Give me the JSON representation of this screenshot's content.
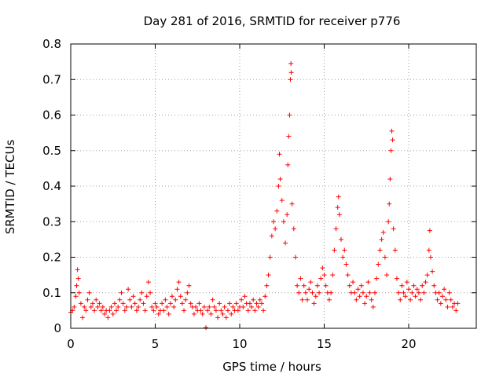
{
  "colors": {
    "points": "#ff0000",
    "grid": "#a0a0a0",
    "axis": "#000000",
    "background": "#ffffff"
  },
  "chart_data": {
    "type": "scatter",
    "title": "Day 281 of 2016, SRMTID for receiver p776",
    "xlabel": "GPS time / hours",
    "ylabel": "SRMTID / TECUs",
    "xlim": [
      0,
      24
    ],
    "ylim": [
      0,
      0.8
    ],
    "grid": true,
    "marker": "plus",
    "x_ticks": [
      {
        "value": 0,
        "label": "0"
      },
      {
        "value": 5,
        "label": "5"
      },
      {
        "value": 10,
        "label": "10"
      },
      {
        "value": 15,
        "label": "15"
      },
      {
        "value": 20,
        "label": "20"
      }
    ],
    "y_ticks": [
      {
        "value": 0,
        "label": "0"
      },
      {
        "value": 0.1,
        "label": "0.1"
      },
      {
        "value": 0.2,
        "label": "0.2"
      },
      {
        "value": 0.3,
        "label": "0.3"
      },
      {
        "value": 0.4,
        "label": "0.4"
      },
      {
        "value": 0.5,
        "label": "0.5"
      },
      {
        "value": 0.6,
        "label": "0.6"
      },
      {
        "value": 0.7,
        "label": "0.7"
      },
      {
        "value": 0.8,
        "label": "0.8"
      }
    ],
    "series": [
      {
        "name": "SRMTID",
        "points": [
          [
            0.0,
            0.045
          ],
          [
            0.1,
            0.05
          ],
          [
            0.2,
            0.06
          ],
          [
            0.3,
            0.09
          ],
          [
            0.35,
            0.12
          ],
          [
            0.4,
            0.165
          ],
          [
            0.45,
            0.14
          ],
          [
            0.5,
            0.1
          ],
          [
            0.6,
            0.07
          ],
          [
            0.7,
            0.03
          ],
          [
            0.8,
            0.06
          ],
          [
            0.9,
            0.05
          ],
          [
            1.0,
            0.08
          ],
          [
            1.1,
            0.1
          ],
          [
            1.2,
            0.06
          ],
          [
            1.3,
            0.07
          ],
          [
            1.4,
            0.05
          ],
          [
            1.5,
            0.08
          ],
          [
            1.6,
            0.06
          ],
          [
            1.7,
            0.07
          ],
          [
            1.8,
            0.05
          ],
          [
            1.9,
            0.06
          ],
          [
            2.0,
            0.04
          ],
          [
            2.1,
            0.05
          ],
          [
            2.2,
            0.03
          ],
          [
            2.3,
            0.05
          ],
          [
            2.4,
            0.06
          ],
          [
            2.5,
            0.04
          ],
          [
            2.6,
            0.07
          ],
          [
            2.7,
            0.05
          ],
          [
            2.8,
            0.06
          ],
          [
            2.9,
            0.08
          ],
          [
            3.0,
            0.1
          ],
          [
            3.1,
            0.07
          ],
          [
            3.2,
            0.05
          ],
          [
            3.3,
            0.06
          ],
          [
            3.4,
            0.11
          ],
          [
            3.5,
            0.08
          ],
          [
            3.6,
            0.06
          ],
          [
            3.7,
            0.09
          ],
          [
            3.8,
            0.07
          ],
          [
            3.9,
            0.05
          ],
          [
            4.0,
            0.06
          ],
          [
            4.1,
            0.08
          ],
          [
            4.2,
            0.1
          ],
          [
            4.3,
            0.07
          ],
          [
            4.4,
            0.05
          ],
          [
            4.5,
            0.09
          ],
          [
            4.6,
            0.13
          ],
          [
            4.7,
            0.1
          ],
          [
            4.8,
            0.06
          ],
          [
            4.9,
            0.05
          ],
          [
            5.0,
            0.07
          ],
          [
            5.1,
            0.06
          ],
          [
            5.2,
            0.04
          ],
          [
            5.3,
            0.05
          ],
          [
            5.4,
            0.07
          ],
          [
            5.5,
            0.05
          ],
          [
            5.6,
            0.08
          ],
          [
            5.7,
            0.06
          ],
          [
            5.8,
            0.04
          ],
          [
            5.9,
            0.07
          ],
          [
            6.0,
            0.09
          ],
          [
            6.1,
            0.06
          ],
          [
            6.2,
            0.08
          ],
          [
            6.3,
            0.11
          ],
          [
            6.4,
            0.13
          ],
          [
            6.5,
            0.09
          ],
          [
            6.6,
            0.07
          ],
          [
            6.7,
            0.05
          ],
          [
            6.8,
            0.08
          ],
          [
            6.9,
            0.1
          ],
          [
            7.0,
            0.12
          ],
          [
            7.1,
            0.07
          ],
          [
            7.2,
            0.06
          ],
          [
            7.3,
            0.04
          ],
          [
            7.4,
            0.06
          ],
          [
            7.5,
            0.05
          ],
          [
            7.6,
            0.07
          ],
          [
            7.7,
            0.05
          ],
          [
            7.8,
            0.04
          ],
          [
            7.9,
            0.06
          ],
          [
            8.0,
            0.002
          ],
          [
            8.1,
            0.05
          ],
          [
            8.2,
            0.06
          ],
          [
            8.3,
            0.04
          ],
          [
            8.4,
            0.08
          ],
          [
            8.5,
            0.06
          ],
          [
            8.6,
            0.05
          ],
          [
            8.7,
            0.03
          ],
          [
            8.8,
            0.07
          ],
          [
            8.9,
            0.05
          ],
          [
            9.0,
            0.04
          ],
          [
            9.1,
            0.06
          ],
          [
            9.2,
            0.03
          ],
          [
            9.3,
            0.05
          ],
          [
            9.4,
            0.07
          ],
          [
            9.5,
            0.04
          ],
          [
            9.6,
            0.06
          ],
          [
            9.7,
            0.05
          ],
          [
            9.8,
            0.07
          ],
          [
            9.9,
            0.05
          ],
          [
            10.0,
            0.06
          ],
          [
            10.1,
            0.08
          ],
          [
            10.2,
            0.06
          ],
          [
            10.3,
            0.09
          ],
          [
            10.4,
            0.07
          ],
          [
            10.5,
            0.05
          ],
          [
            10.6,
            0.07
          ],
          [
            10.7,
            0.06
          ],
          [
            10.8,
            0.08
          ],
          [
            10.9,
            0.05
          ],
          [
            11.0,
            0.07
          ],
          [
            11.1,
            0.06
          ],
          [
            11.2,
            0.08
          ],
          [
            11.3,
            0.07
          ],
          [
            11.4,
            0.05
          ],
          [
            11.5,
            0.09
          ],
          [
            11.6,
            0.12
          ],
          [
            11.7,
            0.15
          ],
          [
            11.8,
            0.2
          ],
          [
            11.9,
            0.26
          ],
          [
            12.0,
            0.3
          ],
          [
            12.1,
            0.28
          ],
          [
            12.2,
            0.33
          ],
          [
            12.3,
            0.4
          ],
          [
            12.35,
            0.49
          ],
          [
            12.4,
            0.42
          ],
          [
            12.5,
            0.36
          ],
          [
            12.6,
            0.3
          ],
          [
            12.7,
            0.24
          ],
          [
            12.8,
            0.32
          ],
          [
            12.85,
            0.46
          ],
          [
            12.9,
            0.54
          ],
          [
            12.95,
            0.6
          ],
          [
            13.0,
            0.7
          ],
          [
            13.03,
            0.745
          ],
          [
            13.05,
            0.72
          ],
          [
            13.1,
            0.35
          ],
          [
            13.2,
            0.28
          ],
          [
            13.3,
            0.2
          ],
          [
            13.4,
            0.12
          ],
          [
            13.5,
            0.1
          ],
          [
            13.6,
            0.14
          ],
          [
            13.7,
            0.08
          ],
          [
            13.8,
            0.12
          ],
          [
            13.9,
            0.1
          ],
          [
            14.0,
            0.08
          ],
          [
            14.1,
            0.11
          ],
          [
            14.2,
            0.13
          ],
          [
            14.3,
            0.1
          ],
          [
            14.4,
            0.07
          ],
          [
            14.5,
            0.09
          ],
          [
            14.6,
            0.12
          ],
          [
            14.7,
            0.1
          ],
          [
            14.8,
            0.14
          ],
          [
            14.9,
            0.17
          ],
          [
            15.0,
            0.15
          ],
          [
            15.1,
            0.12
          ],
          [
            15.2,
            0.1
          ],
          [
            15.3,
            0.08
          ],
          [
            15.4,
            0.1
          ],
          [
            15.5,
            0.15
          ],
          [
            15.6,
            0.22
          ],
          [
            15.7,
            0.28
          ],
          [
            15.8,
            0.34
          ],
          [
            15.85,
            0.37
          ],
          [
            15.9,
            0.32
          ],
          [
            16.0,
            0.25
          ],
          [
            16.1,
            0.2
          ],
          [
            16.2,
            0.22
          ],
          [
            16.3,
            0.18
          ],
          [
            16.4,
            0.15
          ],
          [
            16.5,
            0.12
          ],
          [
            16.6,
            0.1
          ],
          [
            16.7,
            0.13
          ],
          [
            16.8,
            0.1
          ],
          [
            16.9,
            0.08
          ],
          [
            17.0,
            0.11
          ],
          [
            17.1,
            0.09
          ],
          [
            17.2,
            0.12
          ],
          [
            17.3,
            0.1
          ],
          [
            17.4,
            0.07
          ],
          [
            17.5,
            0.09
          ],
          [
            17.6,
            0.13
          ],
          [
            17.7,
            0.1
          ],
          [
            17.8,
            0.08
          ],
          [
            17.9,
            0.06
          ],
          [
            18.0,
            0.1
          ],
          [
            18.1,
            0.14
          ],
          [
            18.2,
            0.18
          ],
          [
            18.3,
            0.22
          ],
          [
            18.4,
            0.25
          ],
          [
            18.5,
            0.27
          ],
          [
            18.6,
            0.2
          ],
          [
            18.7,
            0.15
          ],
          [
            18.8,
            0.3
          ],
          [
            18.85,
            0.35
          ],
          [
            18.9,
            0.42
          ],
          [
            18.95,
            0.5
          ],
          [
            19.0,
            0.555
          ],
          [
            19.05,
            0.53
          ],
          [
            19.1,
            0.28
          ],
          [
            19.2,
            0.22
          ],
          [
            19.3,
            0.14
          ],
          [
            19.4,
            0.1
          ],
          [
            19.5,
            0.08
          ],
          [
            19.6,
            0.12
          ],
          [
            19.7,
            0.1
          ],
          [
            19.8,
            0.09
          ],
          [
            19.9,
            0.13
          ],
          [
            20.0,
            0.11
          ],
          [
            20.1,
            0.08
          ],
          [
            20.2,
            0.1
          ],
          [
            20.3,
            0.12
          ],
          [
            20.4,
            0.09
          ],
          [
            20.5,
            0.11
          ],
          [
            20.6,
            0.1
          ],
          [
            20.7,
            0.08
          ],
          [
            20.8,
            0.12
          ],
          [
            20.9,
            0.1
          ],
          [
            21.0,
            0.13
          ],
          [
            21.1,
            0.15
          ],
          [
            21.2,
            0.22
          ],
          [
            21.25,
            0.275
          ],
          [
            21.3,
            0.2
          ],
          [
            21.4,
            0.16
          ],
          [
            21.5,
            0.12
          ],
          [
            21.6,
            0.1
          ],
          [
            21.7,
            0.08
          ],
          [
            21.8,
            0.1
          ],
          [
            21.9,
            0.07
          ],
          [
            22.0,
            0.09
          ],
          [
            22.1,
            0.11
          ],
          [
            22.2,
            0.08
          ],
          [
            22.3,
            0.06
          ],
          [
            22.4,
            0.1
          ],
          [
            22.5,
            0.08
          ],
          [
            22.6,
            0.06
          ],
          [
            22.7,
            0.07
          ],
          [
            22.8,
            0.05
          ],
          [
            22.9,
            0.07
          ]
        ]
      }
    ]
  }
}
